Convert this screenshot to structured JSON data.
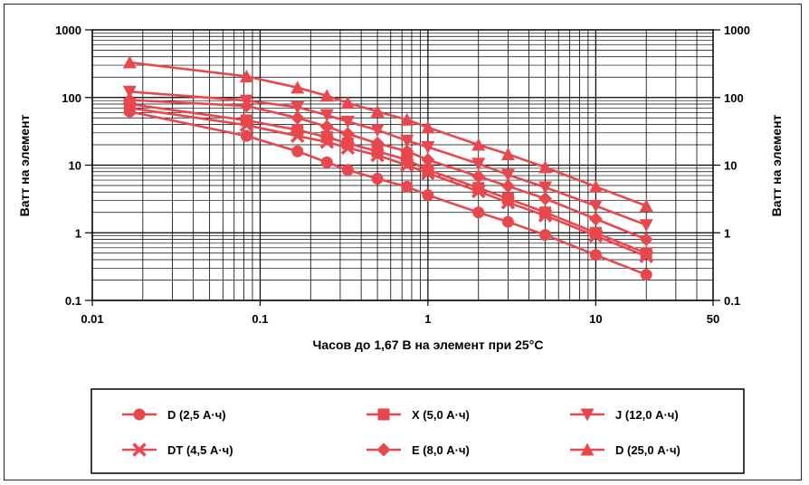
{
  "chart_data": {
    "type": "line",
    "xscale": "log",
    "yscale": "log",
    "xlabel": "Часов до 1,67 В на элемент при 25°C",
    "ylabel": "Ватт на элемент",
    "ylabel_right": "Ватт на элемент",
    "xlim": [
      0.01,
      50
    ],
    "ylim": [
      0.1,
      1000
    ],
    "xticks": [
      {
        "value": 0.01,
        "label": "0.01"
      },
      {
        "value": 0.1,
        "label": "0.1"
      },
      {
        "value": 1,
        "label": "1"
      },
      {
        "value": 10,
        "label": "10"
      },
      {
        "value": 50,
        "label": "50"
      }
    ],
    "yticks": [
      {
        "value": 1000,
        "label": "1000"
      },
      {
        "value": 100,
        "label": "100"
      },
      {
        "value": 10,
        "label": "10"
      },
      {
        "value": 1,
        "label": "1"
      },
      {
        "value": 0.1,
        "label": "0.1"
      }
    ],
    "grid": true,
    "legend_position": "bottom",
    "line_color": "#e8474e",
    "series": [
      {
        "name": "D (2,5 А·ч)",
        "marker": "circle",
        "points": [
          [
            0.0167,
            62
          ],
          [
            0.083,
            27
          ],
          [
            0.167,
            16
          ],
          [
            0.25,
            11
          ],
          [
            0.333,
            8.5
          ],
          [
            0.5,
            6.3
          ],
          [
            0.75,
            4.8
          ],
          [
            1,
            3.6
          ],
          [
            2,
            2.0
          ],
          [
            3,
            1.45
          ],
          [
            5,
            0.93
          ],
          [
            10,
            0.47
          ],
          [
            20,
            0.24
          ]
        ]
      },
      {
        "name": "X (5,0 А·ч)",
        "marker": "square",
        "points": [
          [
            0.0167,
            80
          ],
          [
            0.083,
            46
          ],
          [
            0.167,
            33
          ],
          [
            0.25,
            26
          ],
          [
            0.333,
            21
          ],
          [
            0.5,
            16
          ],
          [
            0.75,
            12
          ],
          [
            1,
            8.5
          ],
          [
            2,
            4.6
          ],
          [
            3,
            3.2
          ],
          [
            5,
            2.0
          ],
          [
            10,
            1.0
          ],
          [
            20,
            0.5
          ]
        ]
      },
      {
        "name": "J (12,0 А·ч)",
        "marker": "triangle-down",
        "points": [
          [
            0.0167,
            122
          ],
          [
            0.083,
            90
          ],
          [
            0.167,
            72
          ],
          [
            0.25,
            55
          ],
          [
            0.333,
            44
          ],
          [
            0.5,
            33
          ],
          [
            0.75,
            23
          ],
          [
            1,
            18.5
          ],
          [
            2,
            10.5
          ],
          [
            3,
            7.2
          ],
          [
            5,
            4.7
          ],
          [
            10,
            2.5
          ],
          [
            20,
            1.3
          ]
        ]
      },
      {
        "name": "DT (4,5 А·ч)",
        "marker": "cross",
        "points": [
          [
            0.0167,
            70
          ],
          [
            0.083,
            39
          ],
          [
            0.167,
            27
          ],
          [
            0.25,
            22
          ],
          [
            0.333,
            18
          ],
          [
            0.5,
            14
          ],
          [
            0.75,
            10
          ],
          [
            1,
            7.6
          ],
          [
            2,
            4.1
          ],
          [
            3,
            2.8
          ],
          [
            5,
            1.8
          ],
          [
            10,
            0.9
          ],
          [
            20,
            0.45
          ]
        ]
      },
      {
        "name": "E (8,0 А·ч)",
        "marker": "diamond",
        "points": [
          [
            0.0167,
            92
          ],
          [
            0.083,
            75
          ],
          [
            0.167,
            50
          ],
          [
            0.25,
            37
          ],
          [
            0.333,
            29
          ],
          [
            0.5,
            21
          ],
          [
            0.75,
            16
          ],
          [
            1,
            12
          ],
          [
            2,
            6.8
          ],
          [
            3,
            4.9
          ],
          [
            5,
            3.2
          ],
          [
            10,
            1.6
          ],
          [
            20,
            0.8
          ]
        ]
      },
      {
        "name": "D (25,0 А·ч)",
        "marker": "triangle-up",
        "points": [
          [
            0.0167,
            330
          ],
          [
            0.083,
            205
          ],
          [
            0.167,
            140
          ],
          [
            0.25,
            106
          ],
          [
            0.333,
            83
          ],
          [
            0.5,
            62
          ],
          [
            0.75,
            47
          ],
          [
            1,
            36
          ],
          [
            2,
            20
          ],
          [
            3,
            14.5
          ],
          [
            5,
            9.3
          ],
          [
            10,
            4.8
          ],
          [
            20,
            2.5
          ]
        ]
      }
    ],
    "legend_order": [
      0,
      1,
      2,
      3,
      4,
      5
    ]
  }
}
